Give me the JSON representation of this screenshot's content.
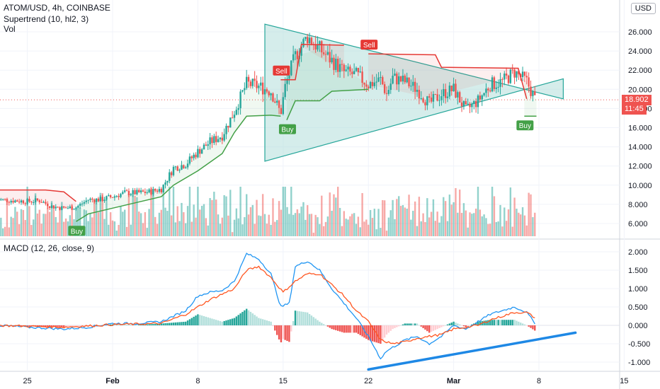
{
  "header": {
    "symbol": "ATOM/USD, 4h, COINBASE",
    "indicator1": "Supertrend (10, hl2, 3)",
    "indicator2": "Vol",
    "macd_label": "MACD (12, 26, close, 9)",
    "currency": "USD"
  },
  "current_price": {
    "value": "18.902",
    "countdown": "11:45"
  },
  "colors": {
    "up": "#26a69a",
    "down": "#ef5350",
    "st_up": "#43a047",
    "st_down": "#e53935",
    "triangle_fill": "#b2dfdb",
    "triangle_line": "#26a69a",
    "macd": "#2196f3",
    "signal": "#ff5722",
    "trendline": "#1e88e5"
  },
  "chart_data": [
    {
      "type": "candlestick",
      "title": "ATOM/USD, 4h, COINBASE",
      "x_ticks": [
        "25",
        "Feb",
        "8",
        "15",
        "22",
        "Mar",
        "8",
        "15"
      ],
      "x_tick_days": [
        -7,
        0,
        7,
        14,
        21,
        28,
        35,
        42
      ],
      "y_ticks": [
        "6.000",
        "8.000",
        "10.000",
        "12.000",
        "14.000",
        "16.000",
        "18.000",
        "20.000",
        "22.000",
        "24.000",
        "26.000"
      ],
      "ylim": [
        4.6,
        28.5
      ],
      "x_axis_note": "days from Feb 1",
      "price_path": [
        [
          -9.5,
          8.5
        ],
        [
          -7,
          8.3
        ],
        [
          -6,
          8.4
        ],
        [
          -5,
          7.8
        ],
        [
          -4,
          7.6
        ],
        [
          -3,
          7.7
        ],
        [
          -2,
          8.5
        ],
        [
          -1,
          8.5
        ],
        [
          0,
          8.8
        ],
        [
          1,
          9.2
        ],
        [
          2,
          9.2
        ],
        [
          3,
          9.3
        ],
        [
          4,
          9.6
        ],
        [
          5,
          11.8
        ],
        [
          6,
          12.2
        ],
        [
          7,
          13.5
        ],
        [
          8,
          14.5
        ],
        [
          9,
          15.2
        ],
        [
          10,
          17.7
        ],
        [
          11,
          20.6
        ],
        [
          12,
          20.3
        ],
        [
          13,
          19.8
        ],
        [
          13.8,
          17.5
        ],
        [
          14.2,
          20.5
        ],
        [
          15,
          23.5
        ],
        [
          16,
          25.5
        ],
        [
          17,
          24.2
        ],
        [
          18,
          23.0
        ],
        [
          19,
          21.8
        ],
        [
          20,
          21.5
        ],
        [
          21,
          20.5
        ],
        [
          22,
          21.0
        ],
        [
          22.5,
          19.5
        ],
        [
          23,
          21.2
        ],
        [
          24,
          20.8
        ],
        [
          25,
          20.0
        ],
        [
          26,
          18.5
        ],
        [
          27,
          19.5
        ],
        [
          28,
          20.0
        ],
        [
          29,
          17.8
        ],
        [
          30,
          18.8
        ],
        [
          31,
          20.5
        ],
        [
          32,
          20.8
        ],
        [
          33,
          21.8
        ],
        [
          34,
          20.8
        ],
        [
          34.7,
          18.9
        ]
      ],
      "supertrend": [
        {
          "trend": "down",
          "points": [
            [
              -9.5,
              9.5
            ],
            [
              -5.5,
              9.5
            ],
            [
              -4,
              9.3
            ],
            [
              -3,
              8.3
            ]
          ]
        },
        {
          "trend": "up",
          "points": [
            [
              -3,
              6.2
            ],
            [
              -2,
              7.0
            ],
            [
              0,
              7.6
            ],
            [
              2,
              8.2
            ],
            [
              4,
              8.8
            ],
            [
              5,
              10.0
            ],
            [
              7,
              11.5
            ],
            [
              9,
              13.3
            ],
            [
              10,
              15.5
            ],
            [
              11,
              17.2
            ],
            [
              13,
              17.3
            ],
            [
              13.8,
              17.2
            ]
          ]
        },
        {
          "trend": "down",
          "points": [
            [
              13.8,
              21.0
            ],
            [
              15,
              21.0
            ],
            [
              15.5,
              24.7
            ],
            [
              19,
              24.6
            ]
          ]
        },
        {
          "trend": "up",
          "points": [
            [
              14.3,
              16.8
            ],
            [
              15,
              18.8
            ],
            [
              17,
              18.8
            ],
            [
              18,
              19.8
            ],
            [
              21,
              20.0
            ]
          ]
        },
        {
          "trend": "down",
          "points": [
            [
              21,
              23.7
            ],
            [
              26.5,
              23.6
            ],
            [
              27,
              22.3
            ],
            [
              33.3,
              22.2
            ],
            [
              34,
              19.0
            ]
          ]
        },
        {
          "trend": "up",
          "points": [
            [
              33.8,
              17.2
            ],
            [
              34.8,
              17.2
            ]
          ]
        }
      ],
      "signals": [
        {
          "type": "Buy",
          "day": -3,
          "price": 6.2
        },
        {
          "type": "Sell",
          "day": 13.8,
          "price": 21.0
        },
        {
          "type": "Buy",
          "day": 14.3,
          "price": 16.8
        },
        {
          "type": "Sell",
          "day": 21,
          "price": 23.7
        },
        {
          "type": "Buy",
          "day": 33.8,
          "price": 17.2
        }
      ],
      "triangle": {
        "points": [
          [
            12.5,
            26.8
          ],
          [
            12.5,
            12.5
          ],
          [
            37,
            21.1
          ],
          [
            37,
            19.0
          ]
        ]
      },
      "last_price": 18.902
    },
    {
      "type": "line",
      "title": "MACD (12, 26, close, 9)",
      "y_ticks": [
        "-1.000",
        "-0.500",
        "0.000",
        "0.500",
        "1.000",
        "1.500",
        "2.000"
      ],
      "ylim": [
        -1.25,
        2.2
      ],
      "series": [
        {
          "name": "MACD",
          "points": [
            [
              -9.5,
              0.0
            ],
            [
              -7,
              -0.05
            ],
            [
              -4,
              -0.1
            ],
            [
              -2,
              -0.05
            ],
            [
              0,
              0.05
            ],
            [
              2,
              0.05
            ],
            [
              4,
              0.1
            ],
            [
              6,
              0.4
            ],
            [
              7,
              0.8
            ],
            [
              8,
              0.9
            ],
            [
              9,
              0.95
            ],
            [
              10,
              1.2
            ],
            [
              11,
              1.95
            ],
            [
              12,
              1.8
            ],
            [
              13,
              1.4
            ],
            [
              13.8,
              0.5
            ],
            [
              14.5,
              0.6
            ],
            [
              15,
              1.6
            ],
            [
              16,
              1.75
            ],
            [
              17,
              1.5
            ],
            [
              18,
              1.0
            ],
            [
              19,
              0.6
            ],
            [
              20,
              0.2
            ],
            [
              21,
              -0.3
            ],
            [
              22,
              -0.9
            ],
            [
              22.5,
              -0.7
            ],
            [
              23,
              -0.6
            ],
            [
              24,
              -0.4
            ],
            [
              25,
              -0.3
            ],
            [
              26,
              -0.5
            ],
            [
              27,
              -0.3
            ],
            [
              28,
              0.0
            ],
            [
              29,
              -0.1
            ],
            [
              30,
              0.1
            ],
            [
              31,
              0.3
            ],
            [
              32,
              0.4
            ],
            [
              33,
              0.5
            ],
            [
              34,
              0.35
            ],
            [
              34.7,
              0.05
            ]
          ]
        },
        {
          "name": "Signal",
          "points": [
            [
              -9.5,
              0.0
            ],
            [
              -4,
              -0.05
            ],
            [
              0,
              0.02
            ],
            [
              4,
              0.05
            ],
            [
              6,
              0.3
            ],
            [
              8,
              0.7
            ],
            [
              10,
              1.0
            ],
            [
              11,
              1.5
            ],
            [
              12,
              1.6
            ],
            [
              13,
              1.3
            ],
            [
              14,
              0.9
            ],
            [
              15,
              1.2
            ],
            [
              16,
              1.4
            ],
            [
              17,
              1.4
            ],
            [
              18,
              1.1
            ],
            [
              19,
              0.8
            ],
            [
              20,
              0.4
            ],
            [
              21,
              0.1
            ],
            [
              22,
              -0.4
            ],
            [
              23,
              -0.5
            ],
            [
              24,
              -0.45
            ],
            [
              25,
              -0.35
            ],
            [
              26,
              -0.3
            ],
            [
              27,
              -0.25
            ],
            [
              28,
              -0.1
            ],
            [
              29,
              -0.05
            ],
            [
              30,
              0.0
            ],
            [
              31,
              0.15
            ],
            [
              32,
              0.25
            ],
            [
              33,
              0.35
            ],
            [
              34,
              0.35
            ],
            [
              34.7,
              0.2
            ]
          ]
        }
      ],
      "trendline": [
        [
          21,
          -1.2
        ],
        [
          38,
          -0.2
        ]
      ]
    }
  ]
}
